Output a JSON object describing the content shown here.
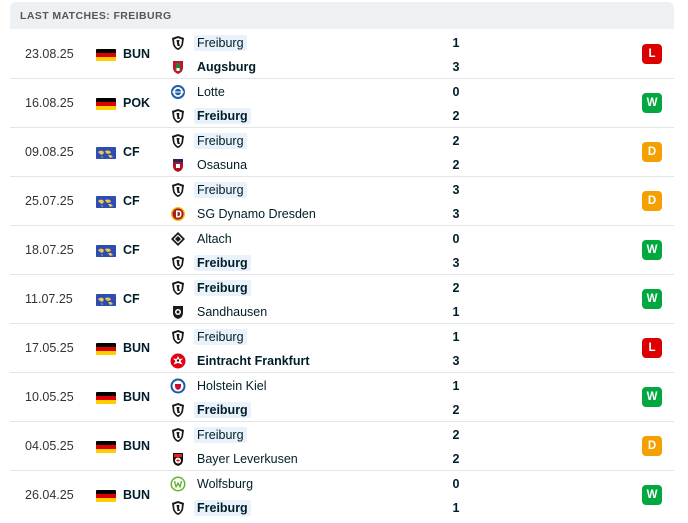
{
  "header": {
    "title": "LAST MATCHES: FREIBURG"
  },
  "colors": {
    "win": "#00a83f",
    "loss": "#dc0000",
    "draw": "#f3a000",
    "highlight": "#e9f2fb"
  },
  "matches": [
    {
      "date": "23.08.25",
      "flag": "germany-flag",
      "competition": "BUN",
      "home": {
        "name": "Freiburg",
        "logo": "freiburg-logo",
        "bold": false,
        "highlight": true,
        "score": "1"
      },
      "away": {
        "name": "Augsburg",
        "logo": "augsburg-logo",
        "bold": true,
        "highlight": false,
        "score": "3"
      },
      "result": "L"
    },
    {
      "date": "16.08.25",
      "flag": "germany-flag",
      "competition": "POK",
      "home": {
        "name": "Lotte",
        "logo": "lotte-logo",
        "bold": false,
        "highlight": false,
        "score": "0"
      },
      "away": {
        "name": "Freiburg",
        "logo": "freiburg-logo",
        "bold": true,
        "highlight": true,
        "score": "2"
      },
      "result": "W"
    },
    {
      "date": "09.08.25",
      "flag": "world-flag",
      "competition": "CF",
      "home": {
        "name": "Freiburg",
        "logo": "freiburg-logo",
        "bold": false,
        "highlight": true,
        "score": "2"
      },
      "away": {
        "name": "Osasuna",
        "logo": "osasuna-logo",
        "bold": false,
        "highlight": false,
        "score": "2"
      },
      "result": "D"
    },
    {
      "date": "25.07.25",
      "flag": "world-flag",
      "competition": "CF",
      "home": {
        "name": "Freiburg",
        "logo": "freiburg-logo",
        "bold": false,
        "highlight": true,
        "score": "3"
      },
      "away": {
        "name": "SG Dynamo Dresden",
        "logo": "dynamo-dresden-logo",
        "bold": false,
        "highlight": false,
        "score": "3"
      },
      "result": "D"
    },
    {
      "date": "18.07.25",
      "flag": "world-flag",
      "competition": "CF",
      "home": {
        "name": "Altach",
        "logo": "altach-logo",
        "bold": false,
        "highlight": false,
        "score": "0"
      },
      "away": {
        "name": "Freiburg",
        "logo": "freiburg-logo",
        "bold": true,
        "highlight": true,
        "score": "3"
      },
      "result": "W"
    },
    {
      "date": "11.07.25",
      "flag": "world-flag",
      "competition": "CF",
      "home": {
        "name": "Freiburg",
        "logo": "freiburg-logo",
        "bold": true,
        "highlight": true,
        "score": "2"
      },
      "away": {
        "name": "Sandhausen",
        "logo": "sandhausen-logo",
        "bold": false,
        "highlight": false,
        "score": "1"
      },
      "result": "W"
    },
    {
      "date": "17.05.25",
      "flag": "germany-flag",
      "competition": "BUN",
      "home": {
        "name": "Freiburg",
        "logo": "freiburg-logo",
        "bold": false,
        "highlight": true,
        "score": "1"
      },
      "away": {
        "name": "Eintracht Frankfurt",
        "logo": "eintracht-frankfurt-logo",
        "bold": true,
        "highlight": false,
        "score": "3"
      },
      "result": "L"
    },
    {
      "date": "10.05.25",
      "flag": "germany-flag",
      "competition": "BUN",
      "home": {
        "name": "Holstein Kiel",
        "logo": "holstein-kiel-logo",
        "bold": false,
        "highlight": false,
        "score": "1"
      },
      "away": {
        "name": "Freiburg",
        "logo": "freiburg-logo",
        "bold": true,
        "highlight": true,
        "score": "2"
      },
      "result": "W"
    },
    {
      "date": "04.05.25",
      "flag": "germany-flag",
      "competition": "BUN",
      "home": {
        "name": "Freiburg",
        "logo": "freiburg-logo",
        "bold": false,
        "highlight": true,
        "score": "2"
      },
      "away": {
        "name": "Bayer Leverkusen",
        "logo": "bayer-leverkusen-logo",
        "bold": false,
        "highlight": false,
        "score": "2"
      },
      "result": "D"
    },
    {
      "date": "26.04.25",
      "flag": "germany-flag",
      "competition": "BUN",
      "home": {
        "name": "Wolfsburg",
        "logo": "wolfsburg-logo",
        "bold": false,
        "highlight": false,
        "score": "0"
      },
      "away": {
        "name": "Freiburg",
        "logo": "freiburg-logo",
        "bold": true,
        "highlight": true,
        "score": "1"
      },
      "result": "W"
    }
  ]
}
